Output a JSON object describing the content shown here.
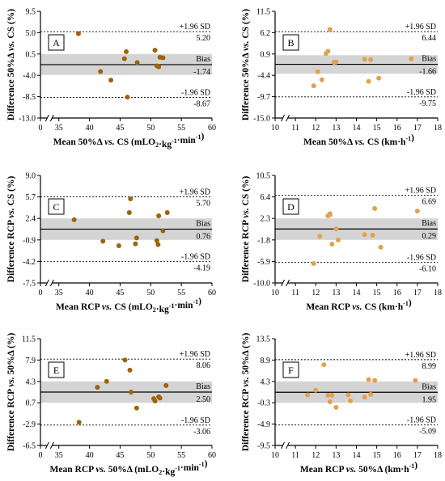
{
  "colors": {
    "dark_series": "#a0620a",
    "light_series": "#e2a14e",
    "band": "#d4d4d4",
    "axis": "#000000"
  },
  "chart_data": [
    {
      "panel": "A",
      "type": "scatter",
      "ylabel": "Difference 50%Δ vs. CS (%)",
      "xlabel": "Mean 50%Δ vs. CS (mLO2·kg-1·min-1)",
      "xlim": [
        0,
        60
      ],
      "x_break": true,
      "xticks": [
        "0",
        "35",
        "40",
        "45",
        "50",
        "55",
        "60"
      ],
      "ylim": [
        -13.0,
        9.5
      ],
      "yticks": [
        "9.5",
        "5.0",
        "0.5",
        "-4.0",
        "-8.5",
        "-13.0"
      ],
      "band": [
        -3.9,
        0.5
      ],
      "bias": {
        "label": "Bias",
        "value": "-1.74",
        "y": -1.74
      },
      "upper": {
        "label": "+1.96 SD",
        "value": "5.20",
        "y": 5.2
      },
      "lower": {
        "label": "-1.96 SD",
        "value": "-8.67",
        "y": -8.67
      },
      "color": "dark",
      "points": [
        [
          38.2,
          4.8
        ],
        [
          41.8,
          -3.2
        ],
        [
          43.5,
          -5.0
        ],
        [
          45.7,
          -0.5
        ],
        [
          46.0,
          1.0
        ],
        [
          46.2,
          -8.6
        ],
        [
          47.8,
          -1.3
        ],
        [
          50.7,
          1.3
        ],
        [
          51.0,
          -2.0
        ],
        [
          51.3,
          -2.2
        ],
        [
          51.5,
          -0.2
        ],
        [
          52.0,
          -0.3
        ]
      ]
    },
    {
      "panel": "B",
      "type": "scatter",
      "ylabel": "Difference 50%Δ vs. CS (%)",
      "xlabel": "Mean 50%Δ vs. CS (km·h-1)",
      "xlim": [
        10,
        18
      ],
      "x_break": true,
      "xticks": [
        "10",
        "11",
        "12",
        "13",
        "14",
        "15",
        "16",
        "17",
        "18"
      ],
      "ylim": [
        -15.0,
        11.5
      ],
      "yticks": [
        "11.5",
        "6.2",
        "0.9",
        "-4.4",
        "-9.7",
        "-15.0"
      ],
      "band": [
        -4.0,
        0.6
      ],
      "bias": {
        "label": "Bias",
        "value": "-1.66",
        "y": -1.66
      },
      "upper": {
        "label": "+1.96 SD",
        "value": "6.44",
        "y": 6.44
      },
      "lower": {
        "label": "-1.96 SD",
        "value": "-9.75",
        "y": -9.75
      },
      "color": "light",
      "points": [
        [
          11.9,
          -7.0
        ],
        [
          12.1,
          -3.5
        ],
        [
          12.3,
          -5.5
        ],
        [
          12.5,
          1.0
        ],
        [
          12.6,
          1.6
        ],
        [
          12.7,
          7.0
        ],
        [
          12.9,
          -1.2
        ],
        [
          13.0,
          -1.1
        ],
        [
          14.4,
          -0.4
        ],
        [
          14.6,
          -5.9
        ],
        [
          14.7,
          -0.5
        ],
        [
          15.1,
          -5.1
        ],
        [
          16.7,
          -0.3
        ]
      ]
    },
    {
      "panel": "C",
      "type": "scatter",
      "ylabel": "Difference RCP vs. CS (%)",
      "xlabel": "Mean RCP vs. CS (mLO2·kg-1·min-1)",
      "xlim": [
        0,
        60
      ],
      "x_break": true,
      "xticks": [
        "0",
        "35",
        "40",
        "45",
        "50",
        "55",
        "60"
      ],
      "ylim": [
        -7.5,
        9.0
      ],
      "yticks": [
        "9.0",
        "5.7",
        "2.4",
        "-0.9",
        "-4.2",
        "-7.5"
      ],
      "band": [
        -0.9,
        2.4
      ],
      "bias": {
        "label": "Bias",
        "value": "0.76",
        "y": 0.76
      },
      "upper": {
        "label": "+1.96 SD",
        "value": "5.70",
        "y": 5.7
      },
      "lower": {
        "label": "-1.96 SD",
        "value": "-4.19",
        "y": -4.19
      },
      "color": "dark",
      "points": [
        [
          37.5,
          2.2
        ],
        [
          42.2,
          -1.1
        ],
        [
          44.8,
          -1.8
        ],
        [
          46.5,
          3.3
        ],
        [
          46.7,
          5.4
        ],
        [
          47.5,
          -1.5
        ],
        [
          47.7,
          -0.6
        ],
        [
          51.0,
          -1.0
        ],
        [
          51.2,
          -1.6
        ],
        [
          51.3,
          2.8
        ],
        [
          52.0,
          0.5
        ],
        [
          52.7,
          3.3
        ]
      ]
    },
    {
      "panel": "D",
      "type": "scatter",
      "ylabel": "Difference RCP vs. CS (%)",
      "xlabel": "Mean RCP vs. CS (km·h-1)",
      "xlim": [
        10,
        18
      ],
      "x_break": true,
      "xticks": [
        "10",
        "11",
        "12",
        "13",
        "14",
        "15",
        "16",
        "17",
        "18"
      ],
      "ylim": [
        -10.0,
        10.5
      ],
      "yticks": [
        "10.5",
        "6.4",
        "2.3",
        "-1.8",
        "-5.9",
        "-10.0"
      ],
      "band": [
        -1.8,
        2.3
      ],
      "bias": {
        "label": "Bias",
        "value": "0.29",
        "y": 0.29
      },
      "upper": {
        "label": "+1.96 SD",
        "value": "6.69",
        "y": 6.69
      },
      "lower": {
        "label": "-1.96 SD",
        "value": "-6.10",
        "y": -6.1
      },
      "color": "light",
      "points": [
        [
          11.9,
          -6.3
        ],
        [
          12.2,
          -1.1
        ],
        [
          12.6,
          2.8
        ],
        [
          12.7,
          3.2
        ],
        [
          12.7,
          3.0
        ],
        [
          12.8,
          -2.6
        ],
        [
          13.0,
          0.3
        ],
        [
          13.1,
          -1.8
        ],
        [
          14.4,
          -0.8
        ],
        [
          14.8,
          -0.9
        ],
        [
          14.9,
          4.2
        ],
        [
          15.2,
          -3.2
        ],
        [
          17.0,
          3.7
        ]
      ]
    },
    {
      "panel": "E",
      "type": "scatter",
      "ylabel": "Difference RCP vs. 50%Δ (%)",
      "xlabel": "Mean RCP vs. 50%Δ (mLO2·kg-1·min-1)",
      "xlim": [
        0,
        60
      ],
      "x_break": true,
      "xticks": [
        "0",
        "35",
        "40",
        "45",
        "50",
        "55",
        "60"
      ],
      "ylim": [
        -6.5,
        11.5
      ],
      "yticks": [
        "11.5",
        "7.9",
        "4.3",
        "0.7",
        "-2.9",
        "-6.5"
      ],
      "band": [
        0.7,
        4.3
      ],
      "bias": {
        "label": "Bias",
        "value": "2.50",
        "y": 2.5
      },
      "upper": {
        "label": "+1.96 SD",
        "value": "8.06",
        "y": 8.06
      },
      "lower": {
        "label": "-1.96 SD",
        "value": "-3.06",
        "y": -3.06
      },
      "color": "dark",
      "points": [
        [
          38.3,
          -2.6
        ],
        [
          41.3,
          3.3
        ],
        [
          42.8,
          4.3
        ],
        [
          45.8,
          7.9
        ],
        [
          46.6,
          6.2
        ],
        [
          46.8,
          2.5
        ],
        [
          47.7,
          -0.2
        ],
        [
          50.5,
          1.4
        ],
        [
          50.7,
          1.0
        ],
        [
          51.3,
          1.7
        ],
        [
          51.5,
          1.5
        ],
        [
          52.5,
          3.6
        ]
      ]
    },
    {
      "panel": "F",
      "type": "scatter",
      "ylabel": "Difference RCP vs. 50%Δ (%)",
      "xlabel": "Mean RCP vs. 50%Δ (km·h-1)",
      "xlim": [
        10,
        18
      ],
      "x_break": true,
      "xticks": [
        "10",
        "11",
        "12",
        "13",
        "14",
        "15",
        "16",
        "17",
        "18"
      ],
      "ylim": [
        -9.5,
        13.5
      ],
      "yticks": [
        "13.5",
        "8.9",
        "4.3",
        "-0.3",
        "-4.9",
        "-9.5"
      ],
      "band": [
        -0.3,
        4.3
      ],
      "bias": {
        "label": "Bias",
        "value": "1.95",
        "y": 1.95
      },
      "upper": {
        "label": "+1.96 SD",
        "value": "8.99",
        "y": 8.99
      },
      "lower": {
        "label": "-1.96 SD",
        "value": "-5.09",
        "y": -5.09
      },
      "color": "light",
      "points": [
        [
          11.6,
          1.4
        ],
        [
          12.0,
          2.4
        ],
        [
          12.4,
          7.9
        ],
        [
          12.6,
          1.3
        ],
        [
          12.7,
          -0.1
        ],
        [
          12.8,
          1.3
        ],
        [
          13.0,
          -1.3
        ],
        [
          13.6,
          1.4
        ],
        [
          13.7,
          0.1
        ],
        [
          14.4,
          0.9
        ],
        [
          14.6,
          4.7
        ],
        [
          14.7,
          1.5
        ],
        [
          14.9,
          4.5
        ],
        [
          16.9,
          4.5
        ]
      ]
    }
  ]
}
